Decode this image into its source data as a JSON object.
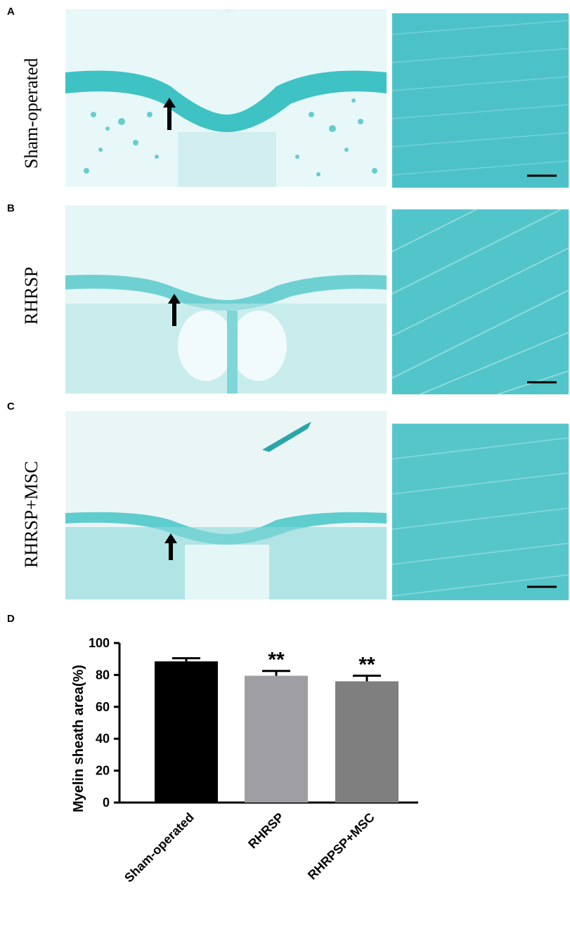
{
  "panels": [
    {
      "letter": "A",
      "label": "Sham-operated"
    },
    {
      "letter": "B",
      "label": "RHRSP"
    },
    {
      "letter": "C",
      "label": "RHRSP+MSC"
    }
  ],
  "chart_letter": "D",
  "colors": {
    "stain_light": "#dff4f4",
    "stain_mid": "#7fd6d6",
    "stain_dark": "#3fc2c4",
    "bar_sham": "#000000",
    "bar_rhrsp": "#9e9ea3",
    "bar_msc": "#7f7f7f"
  },
  "chart_data": {
    "type": "bar",
    "categories": [
      "Sham-operated",
      "RHRSP",
      "RHRPSP+MSC"
    ],
    "values": [
      88.5,
      79.5,
      76
    ],
    "errors": [
      2,
      3,
      3.5
    ],
    "significance": [
      "",
      "**",
      "**"
    ],
    "title": "",
    "xlabel": "",
    "ylabel": "Myelin sheath area(%)",
    "ylim": [
      0,
      100
    ],
    "yticks": [
      "0",
      "20",
      "40",
      "60",
      "80",
      "100"
    ],
    "grid": false
  }
}
